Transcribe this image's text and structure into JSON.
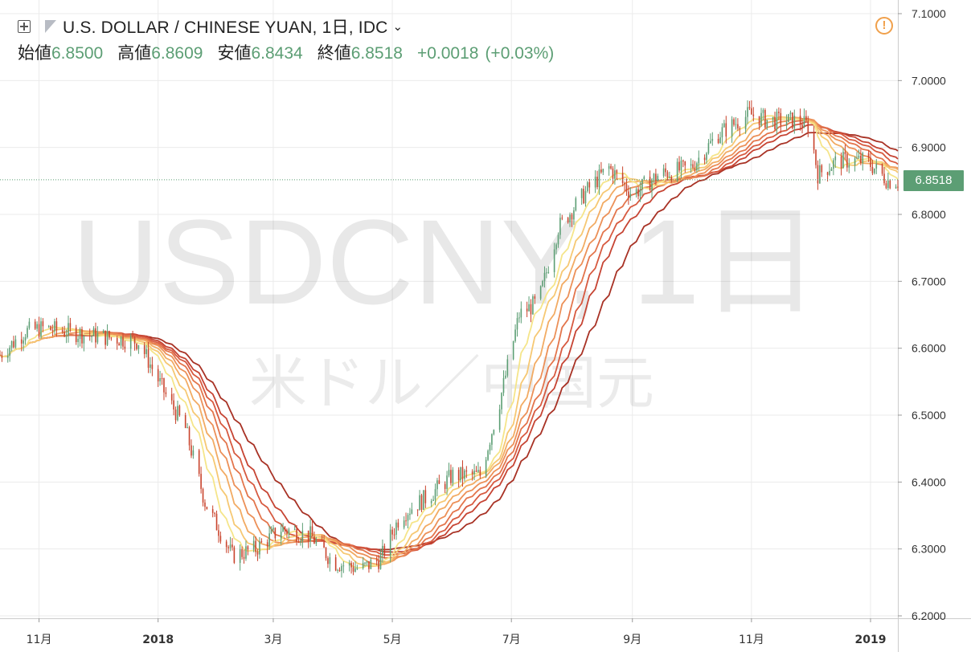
{
  "header": {
    "title": "U.S. DOLLAR / CHINESE YUAN, 1日, IDC",
    "open_label": "始値",
    "open_value": "6.8500",
    "high_label": "高値",
    "high_value": "6.8609",
    "low_label": "安値",
    "low_value": "6.8434",
    "close_label": "終値",
    "close_value": "6.8518",
    "change": "+0.0018",
    "change_pct": "(+0.03%)"
  },
  "watermark": {
    "ticker": "USDCNY, 1日",
    "subtitle": "米ドル／中国元"
  },
  "last_price": "6.8518",
  "colors": {
    "up": "#5c9e74",
    "down": "#c9442d",
    "badge": "#5c9e74",
    "alert": "#f0a04b",
    "ribbon": [
      "#f5e58a",
      "#f6c873",
      "#f2ab63",
      "#ec9058",
      "#e3754c",
      "#d75a40",
      "#c64433",
      "#a83225"
    ]
  },
  "icons": {
    "expand": "expand-icon",
    "alert": "alert-icon",
    "caret": "chevron-down-icon",
    "flag": "symbol-flag-icon"
  },
  "chart_data": {
    "type": "candlestick",
    "title": "U.S. DOLLAR / CHINESE YUAN, 1日, IDC",
    "x_ticks": [
      {
        "label": "11月",
        "date": "2017-11-01",
        "bold": false
      },
      {
        "label": "2018",
        "date": "2018-01-01",
        "bold": true
      },
      {
        "label": "3月",
        "date": "2018-03-01",
        "bold": false
      },
      {
        "label": "5月",
        "date": "2018-05-01",
        "bold": false
      },
      {
        "label": "7月",
        "date": "2018-07-01",
        "bold": false
      },
      {
        "label": "9月",
        "date": "2018-09-01",
        "bold": false
      },
      {
        "label": "11月",
        "date": "2018-11-01",
        "bold": false
      },
      {
        "label": "2019",
        "date": "2019-01-01",
        "bold": true
      }
    ],
    "xlim": [
      "2017-10-12",
      "2019-01-15"
    ],
    "y_ticks": [
      "7.1000",
      "7.0000",
      "6.9000",
      "6.8000",
      "6.7000",
      "6.6000",
      "6.5000",
      "6.4000",
      "6.3000",
      "6.2000"
    ],
    "ylim": [
      6.19,
      7.11
    ],
    "grid": true,
    "last_price": 6.8518,
    "price_path": [
      [
        "2017-10-12",
        6.59
      ],
      [
        "2017-10-25",
        6.625
      ],
      [
        "2017-11-03",
        6.63
      ],
      [
        "2017-11-15",
        6.625
      ],
      [
        "2017-11-25",
        6.62
      ],
      [
        "2017-12-10",
        6.615
      ],
      [
        "2017-12-22",
        6.61
      ],
      [
        "2018-01-05",
        6.53
      ],
      [
        "2018-01-15",
        6.48
      ],
      [
        "2018-01-25",
        6.37
      ],
      [
        "2018-02-08",
        6.29
      ],
      [
        "2018-02-20",
        6.3
      ],
      [
        "2018-03-05",
        6.33
      ],
      [
        "2018-03-20",
        6.32
      ],
      [
        "2018-04-01",
        6.28
      ],
      [
        "2018-04-15",
        6.27
      ],
      [
        "2018-04-25",
        6.285
      ],
      [
        "2018-05-05",
        6.35
      ],
      [
        "2018-05-20",
        6.38
      ],
      [
        "2018-06-01",
        6.41
      ],
      [
        "2018-06-15",
        6.41
      ],
      [
        "2018-06-25",
        6.52
      ],
      [
        "2018-07-05",
        6.65
      ],
      [
        "2018-07-15",
        6.67
      ],
      [
        "2018-07-25",
        6.78
      ],
      [
        "2018-08-10",
        6.84
      ],
      [
        "2018-08-20",
        6.87
      ],
      [
        "2018-09-01",
        6.83
      ],
      [
        "2018-09-15",
        6.86
      ],
      [
        "2018-10-01",
        6.87
      ],
      [
        "2018-10-15",
        6.92
      ],
      [
        "2018-10-31",
        6.95
      ],
      [
        "2018-11-10",
        6.94
      ],
      [
        "2018-11-25",
        6.94
      ],
      [
        "2018-12-01",
        6.93
      ],
      [
        "2018-12-05",
        6.86
      ],
      [
        "2018-12-15",
        6.88
      ],
      [
        "2018-12-30",
        6.88
      ],
      [
        "2019-01-10",
        6.85
      ]
    ],
    "ribbon_ma_lengths": [
      10,
      15,
      20,
      25,
      30,
      35,
      40,
      50
    ]
  }
}
